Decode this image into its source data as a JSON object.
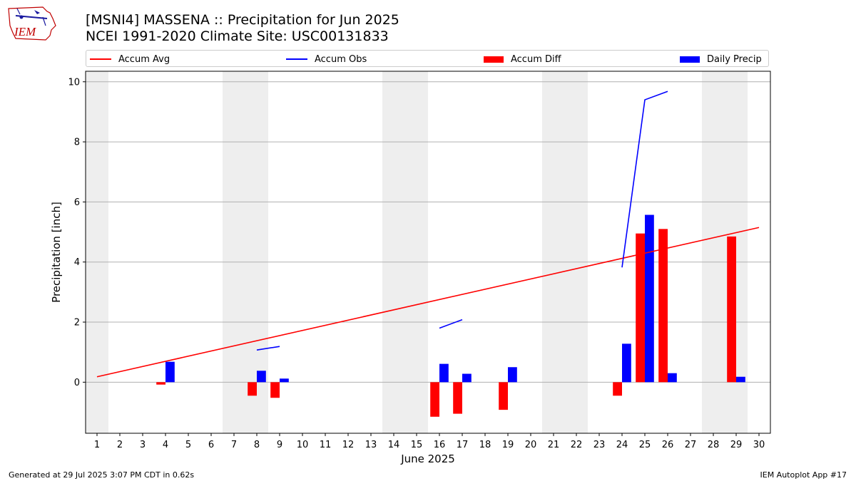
{
  "title_line1": "[MSNI4] MASSENA :: Precipitation for Jun 2025",
  "title_line2": "NCEI 1991-2020 Climate Site: USC00131833",
  "logo_text": "IEM",
  "footer_left": "Generated at 29 Jul 2025 3:07 PM CDT in 0.62s",
  "footer_right": "IEM Autoplot App #17",
  "colors": {
    "accum_avg": "#ff0000",
    "accum_obs": "#0000ff",
    "accum_diff": "#ff0000",
    "daily_precip": "#0000ff",
    "weekend_shade": "#eeeeee",
    "grid": "#b0b0b0"
  },
  "chart_data": {
    "type": "bar",
    "xlabel": "June 2025",
    "ylabel": "Precipitation [inch]",
    "xlim": [
      0.5,
      30.5
    ],
    "ylim": [
      -1.7,
      10.35
    ],
    "x_ticks": [
      1,
      2,
      3,
      4,
      5,
      6,
      7,
      8,
      9,
      10,
      11,
      12,
      13,
      14,
      15,
      16,
      17,
      18,
      19,
      20,
      21,
      22,
      23,
      24,
      25,
      26,
      27,
      28,
      29,
      30
    ],
    "y_ticks": [
      0,
      2,
      4,
      6,
      8,
      10
    ],
    "grid": "horizontal",
    "legend_placement": "top",
    "legend": [
      "Accum Avg",
      "Accum Obs",
      "Accum Diff",
      "Daily Precip"
    ],
    "weekend_days": [
      1,
      7,
      8,
      14,
      15,
      21,
      22,
      28,
      29
    ],
    "accum_avg": {
      "name": "Accum Avg",
      "days": [
        1,
        30
      ],
      "values": [
        0.18,
        5.15
      ]
    },
    "accum_obs_segments": [
      {
        "days": [
          8,
          9
        ],
        "values": [
          1.07,
          1.19
        ]
      },
      {
        "days": [
          16,
          17
        ],
        "values": [
          1.8,
          2.08
        ]
      },
      {
        "days": [
          24,
          25,
          26
        ],
        "values": [
          3.82,
          9.4,
          9.68
        ]
      }
    ],
    "accum_diff": {
      "name": "Accum Diff",
      "days": [
        4,
        8,
        9,
        16,
        17,
        19,
        24,
        25,
        26,
        29
      ],
      "values": [
        -0.08,
        -0.45,
        -0.52,
        -1.15,
        -1.05,
        -0.92,
        -0.45,
        4.95,
        5.1,
        4.85
      ]
    },
    "daily_precip": {
      "name": "Daily Precip",
      "days": [
        4,
        8,
        9,
        16,
        17,
        19,
        24,
        25,
        26,
        29
      ],
      "values": [
        0.68,
        0.38,
        0.12,
        0.61,
        0.28,
        0.5,
        1.28,
        5.57,
        0.3,
        0.18
      ]
    }
  }
}
